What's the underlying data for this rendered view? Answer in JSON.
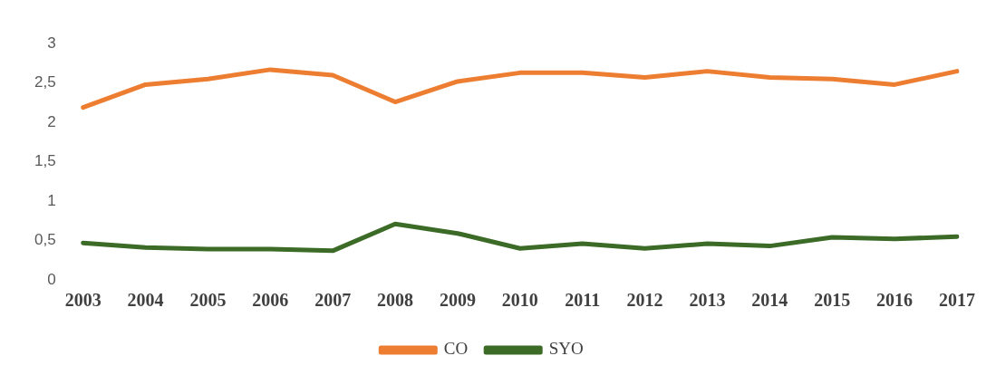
{
  "chart_data": {
    "type": "line",
    "categories": [
      "2003",
      "2004",
      "2005",
      "2006",
      "2007",
      "2008",
      "2009",
      "2010",
      "2011",
      "2012",
      "2013",
      "2014",
      "2015",
      "2016",
      "2017"
    ],
    "series": [
      {
        "name": "CO",
        "color": "#ed7d31",
        "values": [
          2.19,
          2.48,
          2.55,
          2.67,
          2.6,
          2.26,
          2.52,
          2.63,
          2.63,
          2.57,
          2.65,
          2.57,
          2.55,
          2.48,
          2.65
        ]
      },
      {
        "name": "SYO",
        "color": "#3b6b26",
        "values": [
          0.47,
          0.41,
          0.39,
          0.39,
          0.37,
          0.71,
          0.59,
          0.4,
          0.46,
          0.4,
          0.46,
          0.43,
          0.54,
          0.52,
          0.55
        ]
      }
    ],
    "ylim": [
      0,
      3
    ],
    "yticks": [
      0,
      {
        "value": 0.5,
        "label": "0,5"
      },
      1,
      {
        "value": 1.5,
        "label": "1,5"
      },
      2,
      {
        "value": 2.5,
        "label": "2,5"
      },
      3
    ],
    "grid": false,
    "legend": "bottom",
    "marker": "none",
    "line_style": "solid"
  }
}
